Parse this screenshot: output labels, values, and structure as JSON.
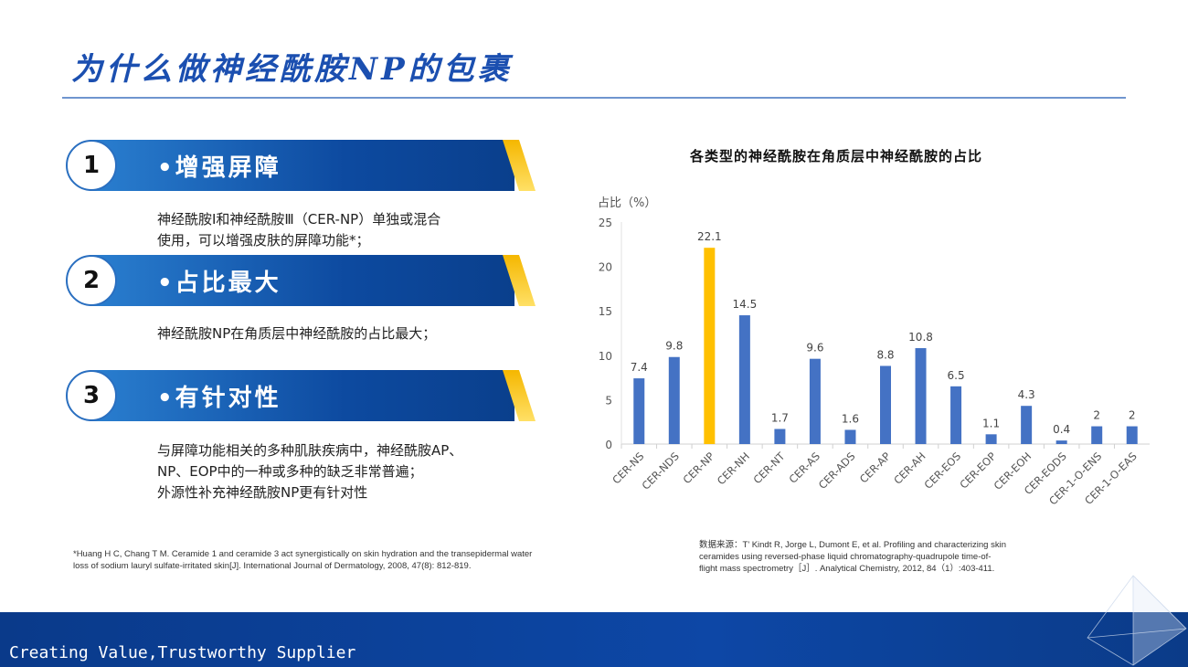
{
  "title": "为什么做神经酰胺NP的包裹",
  "points": [
    {
      "num": "1",
      "label": "•增强屏障",
      "desc": [
        "神经酰胺Ⅰ和神经酰胺Ⅲ（CER-NP）单独或混合",
        "使用，可以增强皮肤的屏障功能*；"
      ]
    },
    {
      "num": "2",
      "label": "•占比最大",
      "desc": [
        "神经酰胺NP在角质层中神经酰胺的占比最大；"
      ]
    },
    {
      "num": "3",
      "label": "•有针对性",
      "desc": [
        "与屏障功能相关的多种肌肤疾病中，神经酰胺AP、",
        "NP、EOP中的一种或多种的缺乏非常普遍；",
        "外源性补充神经酰胺NP更有针对性"
      ]
    }
  ],
  "ref_left": [
    "*Huang H C, Chang T M. Ceramide 1 and ceramide 3 act synergistically on skin hydration and the transepidermal water",
    "loss of sodium lauryl sulfate-irritated skin[J]. International Journal of Dermatology, 2008, 47(8): 812-819."
  ],
  "ref_right": [
    "数据来源：T’ Kindt R, Jorge L, Dumont E, et al. Profiling and characterizing skin",
    "ceramides using reversed-phase liquid chromatography-quadrupole time-of-",
    "flight mass spectrometry［J］. Analytical Chemistry, 2012, 84（1）:403-411."
  ],
  "footer": "Creating Value,Trustworthy Supplier",
  "chart_data": {
    "type": "bar",
    "title": "各类型的神经酰胺在角质层中神经酰胺的占比",
    "ylabel": "占比（%）",
    "ylim": [
      0,
      25
    ],
    "yticks": [
      0,
      5,
      10,
      15,
      20,
      25
    ],
    "categories": [
      "CER-NS",
      "CER-NDS",
      "CER-NP",
      "CER-NH",
      "CER-NT",
      "CER-AS",
      "CER-ADS",
      "CER-AP",
      "CER-AH",
      "CER-EOS",
      "CER-EOP",
      "CER-EOH",
      "CER-EODS",
      "CER-1-O-ENS",
      "CER-1-O-EAS"
    ],
    "values": [
      7.4,
      9.8,
      22.1,
      14.5,
      1.7,
      9.6,
      1.6,
      8.8,
      10.8,
      6.5,
      1.1,
      4.3,
      0.4,
      2,
      2
    ],
    "highlight": "CER-NP",
    "colors": {
      "bar": "#4472c4",
      "highlight": "#ffc000"
    },
    "grid": false
  }
}
